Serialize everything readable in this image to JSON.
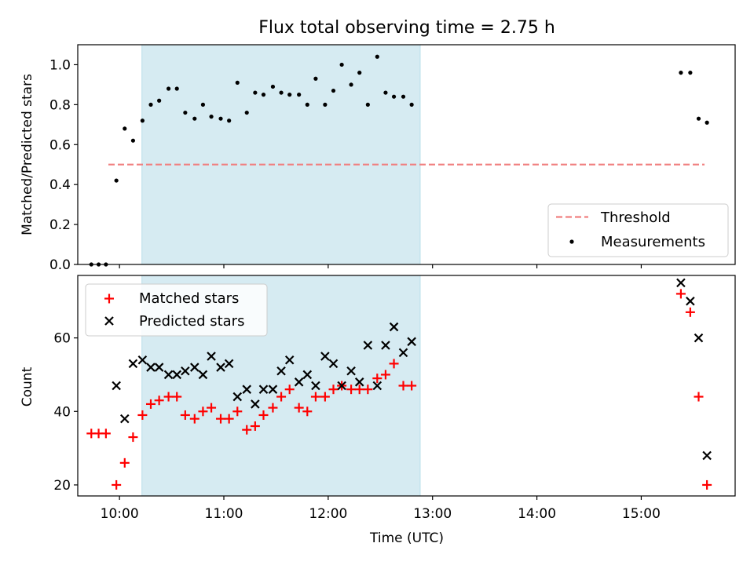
{
  "title": "Flux total observing time = 2.75 h",
  "colors": {
    "shade": "#add8e6",
    "threshold": "#f08080",
    "matched": "#ff0000",
    "predicted": "#000000",
    "measure": "#000000"
  },
  "chart_data": [
    {
      "type": "scatter",
      "panel": "top",
      "ylabel": "Matched/Predicted stars",
      "xlim": [
        9.6,
        15.9
      ],
      "ylim": [
        0,
        1.1
      ],
      "yticks": [
        0.0,
        0.2,
        0.4,
        0.6,
        0.8,
        1.0
      ],
      "ytick_labels": [
        "0.0",
        "0.2",
        "0.4",
        "0.6",
        "0.8",
        "1.0"
      ],
      "shaded_interval": [
        "10:03",
        "12:48"
      ],
      "legend": {
        "placement": "lower-right",
        "entries": [
          "Threshold",
          "Measurements"
        ]
      },
      "series": [
        {
          "name": "Threshold",
          "kind": "dashed-line",
          "x": [
            9.73,
            15.63
          ],
          "y": [
            0.5,
            0.5
          ]
        },
        {
          "name": "Measurements",
          "kind": "points",
          "x": [
            9.73,
            9.8,
            9.87,
            9.97,
            10.05,
            10.13,
            10.22,
            10.3,
            10.38,
            10.47,
            10.55,
            10.63,
            10.72,
            10.8,
            10.88,
            10.97,
            11.05,
            11.13,
            11.22,
            11.3,
            11.38,
            11.47,
            11.55,
            11.63,
            11.72,
            11.8,
            11.88,
            11.97,
            12.05,
            12.13,
            12.22,
            12.3,
            12.38,
            12.47,
            12.55,
            12.63,
            12.72,
            12.8,
            15.38,
            15.47,
            15.55,
            15.63
          ],
          "y": [
            0.0,
            0.0,
            0.0,
            0.42,
            0.68,
            0.62,
            0.72,
            0.8,
            0.82,
            0.88,
            0.88,
            0.76,
            0.73,
            0.8,
            0.74,
            0.73,
            0.72,
            0.91,
            0.76,
            0.86,
            0.85,
            0.89,
            0.86,
            0.85,
            0.85,
            0.8,
            0.93,
            0.8,
            0.87,
            1.0,
            0.9,
            0.96,
            0.8,
            1.04,
            0.86,
            0.84,
            0.84,
            0.8,
            0.96,
            0.96,
            0.73,
            0.71
          ]
        }
      ]
    },
    {
      "type": "scatter",
      "panel": "bottom",
      "ylabel": "Count",
      "xlabel": "Time (UTC)",
      "xlim": [
        9.6,
        15.9
      ],
      "ylim": [
        17,
        77
      ],
      "yticks": [
        20,
        40,
        60
      ],
      "ytick_labels": [
        "20",
        "40",
        "60"
      ],
      "xticks": [
        10,
        11,
        12,
        13,
        14,
        15
      ],
      "xtick_labels": [
        "10:00",
        "11:00",
        "12:00",
        "13:00",
        "14:00",
        "15:00"
      ],
      "shaded_interval": [
        "10:03",
        "12:48"
      ],
      "legend": {
        "placement": "upper-left",
        "entries": [
          "Matched stars",
          "Predicted stars"
        ]
      },
      "series": [
        {
          "name": "Matched stars",
          "marker": "+",
          "x": [
            9.73,
            9.8,
            9.87,
            9.97,
            10.05,
            10.13,
            10.22,
            10.3,
            10.38,
            10.47,
            10.55,
            10.63,
            10.72,
            10.8,
            10.88,
            10.97,
            11.05,
            11.13,
            11.22,
            11.3,
            11.38,
            11.47,
            11.55,
            11.63,
            11.72,
            11.8,
            11.88,
            11.97,
            12.05,
            12.13,
            12.22,
            12.3,
            12.38,
            12.47,
            12.55,
            12.63,
            12.72,
            12.8,
            15.38,
            15.47,
            15.55,
            15.63
          ],
          "y": [
            34,
            34,
            34,
            20,
            26,
            33,
            39,
            42,
            43,
            44,
            44,
            39,
            38,
            40,
            41,
            38,
            38,
            40,
            35,
            36,
            39,
            41,
            44,
            46,
            41,
            40,
            44,
            44,
            46,
            47,
            46,
            46,
            46,
            49,
            50,
            53,
            47,
            47,
            72,
            67,
            44,
            20
          ]
        },
        {
          "name": "Predicted stars",
          "marker": "x",
          "x": [
            9.97,
            10.05,
            10.13,
            10.22,
            10.3,
            10.38,
            10.47,
            10.55,
            10.63,
            10.72,
            10.8,
            10.88,
            10.97,
            11.05,
            11.13,
            11.22,
            11.3,
            11.38,
            11.47,
            11.55,
            11.63,
            11.72,
            11.8,
            11.88,
            11.97,
            12.05,
            12.13,
            12.22,
            12.3,
            12.38,
            12.47,
            12.55,
            12.63,
            12.72,
            12.8,
            15.38,
            15.47,
            15.55,
            15.63
          ],
          "y": [
            47,
            38,
            53,
            54,
            52,
            52,
            50,
            50,
            51,
            52,
            50,
            55,
            52,
            53,
            44,
            46,
            42,
            46,
            46,
            51,
            54,
            48,
            50,
            47,
            55,
            53,
            47,
            51,
            48,
            58,
            47,
            58,
            63,
            56,
            59,
            75,
            70,
            60,
            28
          ]
        }
      ]
    }
  ]
}
